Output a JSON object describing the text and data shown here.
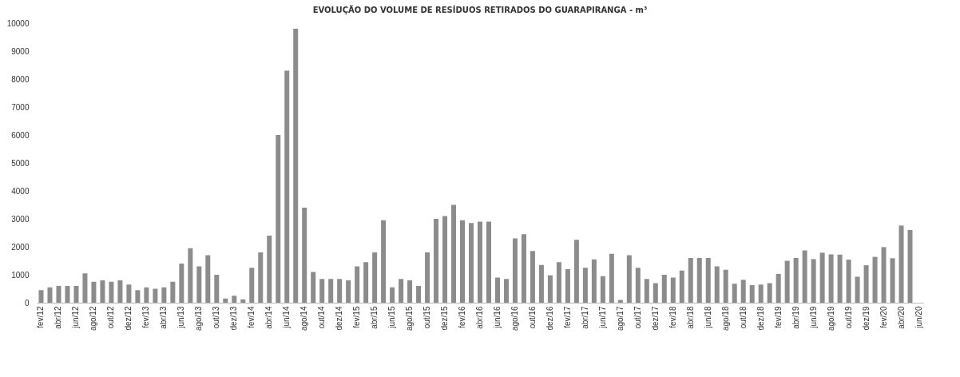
{
  "chart_data": {
    "type": "bar",
    "title": "EVOLUÇÃO DO VOLUME DE RESÍDUOS RETIRADOS DO GUARAPIRANGA - m³",
    "categories": [
      "fev/12",
      null,
      "abr/12",
      null,
      "jun/12",
      null,
      "ago/12",
      null,
      "out/12",
      null,
      "dez/12",
      null,
      "fev/13",
      null,
      "abr/13",
      null,
      "jun/13",
      null,
      "ago/13",
      null,
      "out/13",
      null,
      "dez/13",
      null,
      "fev/14",
      null,
      "abr/14",
      null,
      "jun/14",
      null,
      "ago/14",
      null,
      "out/14",
      null,
      "dez/14",
      null,
      "fev/15",
      null,
      "abr/15",
      null,
      "jun/15",
      null,
      "ago/15",
      null,
      "out/15",
      null,
      "dez/15",
      null,
      "fev/16",
      null,
      "abr/16",
      null,
      "jun/16",
      null,
      "ago/16",
      null,
      "out/16",
      null,
      "dez/16",
      null,
      "fev/17",
      null,
      "abr/17",
      null,
      "jun/17",
      null,
      "ago/17",
      null,
      "out/17",
      null,
      "dez/17",
      null,
      "fev/18",
      null,
      "abr/18",
      null,
      "jun/18",
      null,
      "ago/18",
      null,
      "out/18",
      null,
      "dez/18",
      null,
      "fev/19",
      null,
      "abr/19",
      null,
      "jun/19",
      null,
      "ago/19",
      null,
      "out/19",
      null,
      "dez/19",
      null,
      "fev/20",
      null,
      "abr/20",
      null,
      "jun/20"
    ],
    "values": [
      450,
      550,
      600,
      600,
      600,
      1050,
      750,
      800,
      750,
      800,
      650,
      450,
      550,
      500,
      550,
      750,
      1400,
      1950,
      1300,
      1700,
      1000,
      150,
      250,
      120,
      1250,
      1800,
      2400,
      6000,
      8300,
      9800,
      3400,
      1100,
      850,
      850,
      850,
      800,
      1300,
      1450,
      1800,
      2950,
      550,
      850,
      800,
      600,
      1800,
      3000,
      3100,
      3500,
      2950,
      2850,
      2900,
      2900,
      900,
      850,
      2300,
      2450,
      1850,
      1350,
      980,
      1450,
      1200,
      2250,
      1250,
      1550,
      950,
      1750,
      100,
      1700,
      1250,
      850,
      700,
      1000,
      900,
      1150,
      1600,
      1600,
      1600,
      1300,
      1180,
      680,
      820,
      630,
      650,
      700,
      1030,
      1500,
      1600,
      1870,
      1560,
      1790,
      1730,
      1720,
      1540,
      930,
      1340,
      1640,
      1990,
      1590,
      2760,
      2600,
      null
    ],
    "color": "#8c8c8c",
    "ylim": [
      0,
      10000
    ],
    "yticks": [
      0,
      1000,
      2000,
      3000,
      4000,
      5000,
      6000,
      7000,
      8000,
      9000,
      10000
    ]
  }
}
